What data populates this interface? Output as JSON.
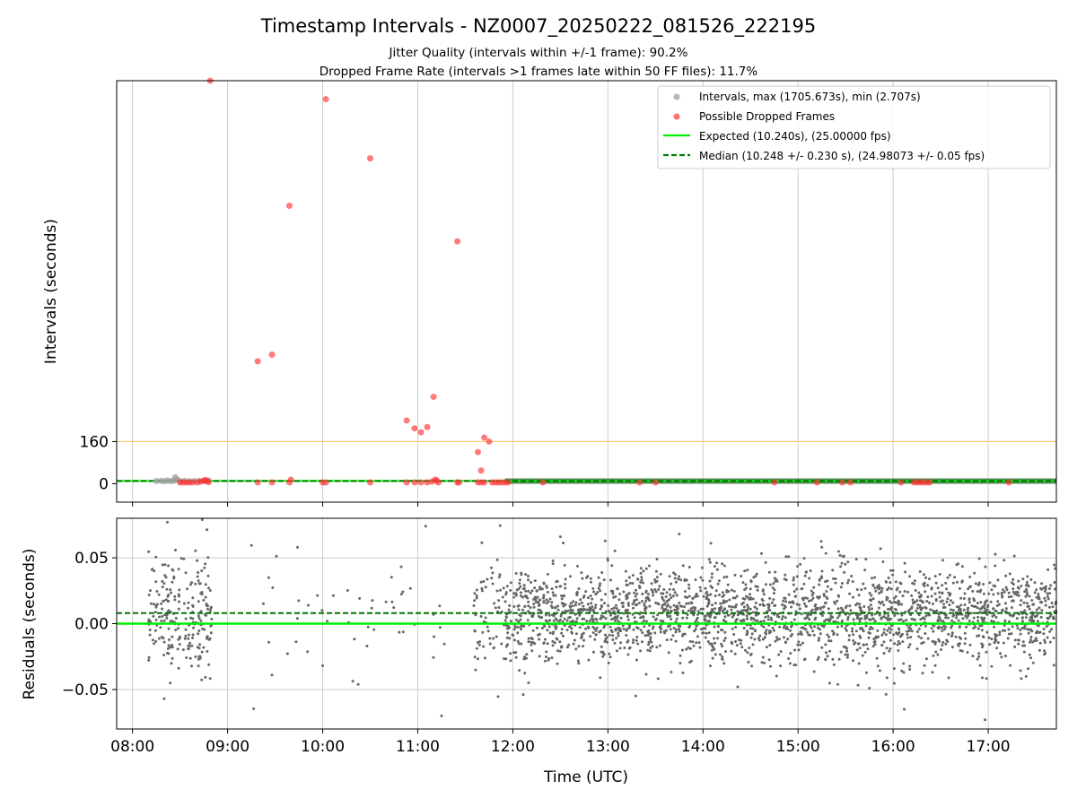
{
  "figure": {
    "title": "Timestamp Intervals - NZ0007_20250222_081526_222195",
    "subtitle1": "Jitter Quality (intervals within +/-1 frame): 90.2%",
    "subtitle2": "Dropped Frame Rate (intervals >1 frames late within 50 FF files): 11.7%"
  },
  "colors": {
    "intervals": "#9e9e9e",
    "dropped": "#ff3333",
    "expected": "#00ee00",
    "median": "#007700",
    "threshold": "#ffc866",
    "residual_points": "#666666",
    "grid": "#cccccc",
    "band": "#3a7a3a"
  },
  "chart_data": [
    {
      "type": "scatter",
      "panel": "top",
      "xlabel": "",
      "ylabel": "Intervals (seconds)",
      "xlim": [
        "07:50",
        "17:43"
      ],
      "ylim": [
        -70,
        1530
      ],
      "x_ticks": [
        "08:00",
        "09:00",
        "10:00",
        "11:00",
        "12:00",
        "13:00",
        "14:00",
        "15:00",
        "16:00",
        "17:00"
      ],
      "y_ticks": [
        0,
        160
      ],
      "grid": "x",
      "legend_position": "top-right",
      "legend": [
        {
          "label": "Intervals, max (1705.673s), min (2.707s)",
          "kind": "marker",
          "color_key": "intervals"
        },
        {
          "label": "Possible Dropped Frames",
          "kind": "marker",
          "color_key": "dropped"
        },
        {
          "label": "Expected (10.240s), (25.00000 fps)",
          "kind": "line",
          "color_key": "expected"
        },
        {
          "label": "Median (10.248 +/- 0.230 s), (24.98073 +/- 0.05 fps)",
          "kind": "dashed",
          "color_key": "median"
        }
      ],
      "threshold_line": 160,
      "expected_line": 10.24,
      "median_line": 10.248,
      "dense_band": {
        "from": "11:55",
        "to": "17:43",
        "low": 0,
        "high": 20
      },
      "interval_points": [
        {
          "t": "08:15",
          "v": 10
        },
        {
          "t": "08:18",
          "v": 11
        },
        {
          "t": "08:20",
          "v": 9
        },
        {
          "t": "08:22",
          "v": 12
        },
        {
          "t": "08:24",
          "v": 10
        },
        {
          "t": "08:26",
          "v": 11
        },
        {
          "t": "08:27",
          "v": 24
        },
        {
          "t": "08:28",
          "v": 16
        },
        {
          "t": "08:30",
          "v": 10
        },
        {
          "t": "08:33",
          "v": 11
        },
        {
          "t": "08:36",
          "v": 9
        },
        {
          "t": "08:39",
          "v": 10
        },
        {
          "t": "08:42",
          "v": 11
        },
        {
          "t": "08:45",
          "v": 10
        },
        {
          "t": "08:48",
          "v": 12
        }
      ],
      "dropped_points": [
        {
          "t": "08:49",
          "v": 1530
        },
        {
          "t": "10:02",
          "v": 1460
        },
        {
          "t": "10:30",
          "v": 1235
        },
        {
          "t": "09:39",
          "v": 1055
        },
        {
          "t": "11:25",
          "v": 920
        },
        {
          "t": "09:19",
          "v": 465
        },
        {
          "t": "09:28",
          "v": 490
        },
        {
          "t": "11:10",
          "v": 330
        },
        {
          "t": "10:53",
          "v": 240
        },
        {
          "t": "10:58",
          "v": 210
        },
        {
          "t": "11:02",
          "v": 195
        },
        {
          "t": "11:06",
          "v": 215
        },
        {
          "t": "11:42",
          "v": 175
        },
        {
          "t": "11:45",
          "v": 160
        },
        {
          "t": "11:38",
          "v": 120
        },
        {
          "t": "11:40",
          "v": 50
        },
        {
          "t": "11:11",
          "v": 15
        },
        {
          "t": "11:12",
          "v": 12
        },
        {
          "t": "08:30",
          "v": 5
        },
        {
          "t": "08:32",
          "v": 5
        },
        {
          "t": "08:34",
          "v": 5
        },
        {
          "t": "08:36",
          "v": 5
        },
        {
          "t": "08:38",
          "v": 5
        },
        {
          "t": "08:41",
          "v": 5
        },
        {
          "t": "08:43",
          "v": 8
        },
        {
          "t": "08:45",
          "v": 12
        },
        {
          "t": "08:46",
          "v": 14
        },
        {
          "t": "08:47",
          "v": 10
        },
        {
          "t": "08:48",
          "v": 6
        },
        {
          "t": "09:19",
          "v": 5
        },
        {
          "t": "09:28",
          "v": 5
        },
        {
          "t": "09:39",
          "v": 5
        },
        {
          "t": "09:40",
          "v": 15
        },
        {
          "t": "10:00",
          "v": 5
        },
        {
          "t": "10:02",
          "v": 5
        },
        {
          "t": "10:30",
          "v": 5
        },
        {
          "t": "10:53",
          "v": 5
        },
        {
          "t": "10:58",
          "v": 5
        },
        {
          "t": "11:02",
          "v": 5
        },
        {
          "t": "11:06",
          "v": 5
        },
        {
          "t": "11:09",
          "v": 8
        },
        {
          "t": "11:13",
          "v": 5
        },
        {
          "t": "11:25",
          "v": 5
        },
        {
          "t": "11:26",
          "v": 5
        },
        {
          "t": "11:38",
          "v": 5
        },
        {
          "t": "11:40",
          "v": 5
        },
        {
          "t": "11:42",
          "v": 5
        },
        {
          "t": "11:47",
          "v": 5
        },
        {
          "t": "11:49",
          "v": 5
        },
        {
          "t": "11:51",
          "v": 5
        },
        {
          "t": "11:53",
          "v": 5
        },
        {
          "t": "11:55",
          "v": 5
        },
        {
          "t": "11:57",
          "v": 5
        },
        {
          "t": "12:19",
          "v": 5
        },
        {
          "t": "13:20",
          "v": 5
        },
        {
          "t": "13:30",
          "v": 5
        },
        {
          "t": "14:45",
          "v": 5
        },
        {
          "t": "15:12",
          "v": 5
        },
        {
          "t": "15:28",
          "v": 5
        },
        {
          "t": "15:33",
          "v": 5
        },
        {
          "t": "16:05",
          "v": 5
        },
        {
          "t": "16:13",
          "v": 5
        },
        {
          "t": "16:15",
          "v": 5
        },
        {
          "t": "16:17",
          "v": 5
        },
        {
          "t": "16:19",
          "v": 5
        },
        {
          "t": "16:21",
          "v": 5
        },
        {
          "t": "16:23",
          "v": 5
        },
        {
          "t": "17:13",
          "v": 5
        }
      ]
    },
    {
      "type": "scatter",
      "panel": "bottom",
      "xlabel": "Time (UTC)",
      "ylabel": "Residuals (seconds)",
      "xlim": [
        "07:50",
        "17:43"
      ],
      "ylim": [
        -0.08,
        0.08
      ],
      "x_ticks": [
        "08:00",
        "09:00",
        "10:00",
        "11:00",
        "12:00",
        "13:00",
        "14:00",
        "15:00",
        "16:00",
        "17:00"
      ],
      "y_ticks": [
        0.05,
        0.0,
        -0.05
      ],
      "y_tick_labels": [
        "0.05",
        "0.00",
        "−0.05"
      ],
      "grid": "both",
      "expected_line": 0.0,
      "median_line": 0.008,
      "clusters": [
        {
          "from": "08:10",
          "to": "08:50",
          "count": 220,
          "center": 0.008,
          "spread": 0.022
        },
        {
          "from": "09:15",
          "to": "11:25",
          "count": 45,
          "center": 0.005,
          "spread": 0.02
        },
        {
          "from": "11:35",
          "to": "11:55",
          "count": 60,
          "center": 0.005,
          "spread": 0.025
        },
        {
          "from": "11:55",
          "to": "17:43",
          "count": 2300,
          "center": 0.006,
          "spread": 0.018
        }
      ],
      "outliers": [
        {
          "t": "08:22",
          "v": 0.077
        },
        {
          "t": "08:44",
          "v": 0.079
        },
        {
          "t": "11:05",
          "v": 0.074
        },
        {
          "t": "08:20",
          "v": -0.057
        },
        {
          "t": "11:15",
          "v": -0.07
        },
        {
          "t": "16:07",
          "v": -0.065
        },
        {
          "t": "16:58",
          "v": -0.073
        },
        {
          "t": "15:45",
          "v": -0.049
        },
        {
          "t": "13:45",
          "v": 0.068
        },
        {
          "t": "12:30",
          "v": 0.066
        },
        {
          "t": "15:15",
          "v": 0.058
        },
        {
          "t": "14:05",
          "v": 0.061
        },
        {
          "t": "09:28",
          "v": -0.039
        },
        {
          "t": "10:00",
          "v": -0.032
        },
        {
          "t": "10:28",
          "v": -0.017
        }
      ]
    }
  ]
}
